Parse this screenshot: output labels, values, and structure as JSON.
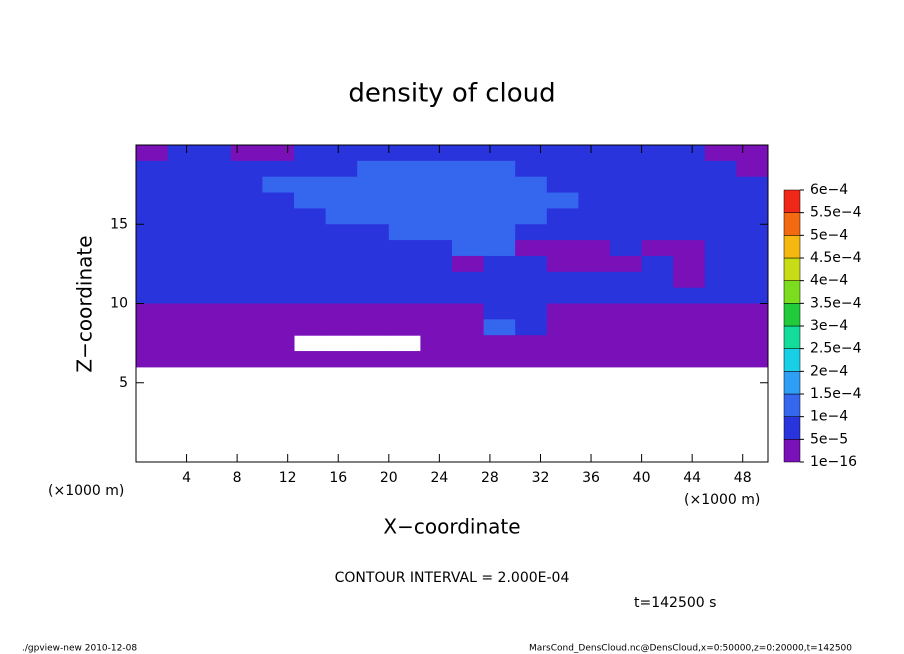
{
  "chart_data": {
    "type": "contour",
    "title": "density of cloud",
    "xlabel": "X−coordinate",
    "ylabel": "Z−coordinate",
    "xunit_left": "(×1000 m)",
    "xunit_right": "(×1000 m)",
    "contour_note": "CONTOUR INTERVAL = 2.000E-04",
    "time_note": "t=142500 s",
    "footer_left": "./gpview-new   2010-12-08",
    "footer_right": "MarsCond_DensCloud.nc@DensCloud,x=0:50000,z=0:20000,t=142500",
    "xlim": [
      0,
      50
    ],
    "ylim": [
      0,
      20
    ],
    "xticks": [
      4,
      8,
      12,
      16,
      20,
      24,
      28,
      32,
      36,
      40,
      44,
      48
    ],
    "yticks": [
      5,
      10,
      15
    ],
    "x": [
      1.25,
      3.75,
      6.25,
      8.75,
      11.25,
      13.75,
      16.25,
      18.75,
      21.25,
      23.75,
      26.25,
      28.75,
      31.25,
      33.75,
      36.25,
      38.75,
      41.25,
      43.75,
      46.25,
      48.75
    ],
    "y": [
      19.5,
      18.5,
      17.5,
      16.5,
      15.5,
      14.5,
      13.5,
      12.5,
      11.5,
      10.5,
      9.5,
      8.5,
      7.5,
      6.5
    ],
    "values": [
      [
        2e-05,
        7e-05,
        7e-05,
        2e-05,
        2e-05,
        7e-05,
        7e-05,
        7e-05,
        7e-05,
        7e-05,
        7e-05,
        7e-05,
        7e-05,
        7e-05,
        7e-05,
        7e-05,
        7e-05,
        7e-05,
        2e-05,
        2e-05
      ],
      [
        7e-05,
        7e-05,
        7e-05,
        7e-05,
        7e-05,
        7e-05,
        7e-05,
        0.00012,
        0.00012,
        0.00012,
        0.00012,
        0.00012,
        7e-05,
        7e-05,
        7e-05,
        7e-05,
        7e-05,
        7e-05,
        7e-05,
        2e-05
      ],
      [
        7e-05,
        7e-05,
        7e-05,
        7e-05,
        0.00012,
        0.00012,
        0.00012,
        0.00012,
        0.00012,
        0.00012,
        0.00012,
        0.00012,
        0.00012,
        7e-05,
        7e-05,
        7e-05,
        7e-05,
        7e-05,
        7e-05,
        7e-05
      ],
      [
        7e-05,
        7e-05,
        7e-05,
        7e-05,
        7e-05,
        0.00012,
        0.00012,
        0.00012,
        0.00012,
        0.00012,
        0.00012,
        0.00012,
        0.00012,
        0.00012,
        7e-05,
        7e-05,
        7e-05,
        7e-05,
        7e-05,
        7e-05
      ],
      [
        7e-05,
        7e-05,
        7e-05,
        7e-05,
        7e-05,
        7e-05,
        0.00012,
        0.00012,
        0.00012,
        0.00012,
        0.00012,
        0.00012,
        0.00012,
        7e-05,
        7e-05,
        7e-05,
        7e-05,
        7e-05,
        7e-05,
        7e-05
      ],
      [
        7e-05,
        7e-05,
        7e-05,
        7e-05,
        7e-05,
        7e-05,
        7e-05,
        7e-05,
        0.00012,
        0.00012,
        0.00012,
        0.00012,
        7e-05,
        7e-05,
        7e-05,
        7e-05,
        7e-05,
        7e-05,
        7e-05,
        7e-05
      ],
      [
        7e-05,
        7e-05,
        7e-05,
        7e-05,
        7e-05,
        7e-05,
        7e-05,
        7e-05,
        7e-05,
        7e-05,
        0.00012,
        0.00012,
        2e-05,
        2e-05,
        2e-05,
        7e-05,
        2e-05,
        2e-05,
        7e-05,
        7e-05
      ],
      [
        7e-05,
        7e-05,
        7e-05,
        7e-05,
        7e-05,
        7e-05,
        7e-05,
        7e-05,
        7e-05,
        7e-05,
        2e-05,
        7e-05,
        7e-05,
        2e-05,
        2e-05,
        2e-05,
        7e-05,
        2e-05,
        7e-05,
        7e-05
      ],
      [
        7e-05,
        7e-05,
        7e-05,
        7e-05,
        7e-05,
        7e-05,
        7e-05,
        7e-05,
        7e-05,
        7e-05,
        7e-05,
        7e-05,
        7e-05,
        7e-05,
        7e-05,
        7e-05,
        7e-05,
        2e-05,
        7e-05,
        7e-05
      ],
      [
        7e-05,
        7e-05,
        7e-05,
        7e-05,
        7e-05,
        7e-05,
        7e-05,
        7e-05,
        7e-05,
        7e-05,
        7e-05,
        7e-05,
        7e-05,
        7e-05,
        7e-05,
        7e-05,
        7e-05,
        7e-05,
        7e-05,
        7e-05
      ],
      [
        2e-05,
        2e-05,
        2e-05,
        2e-05,
        2e-05,
        2e-05,
        2e-05,
        2e-05,
        2e-05,
        2e-05,
        2e-05,
        7e-05,
        7e-05,
        2e-05,
        2e-05,
        2e-05,
        2e-05,
        2e-05,
        2e-05,
        2e-05
      ],
      [
        2e-05,
        2e-05,
        2e-05,
        2e-05,
        2e-05,
        2e-05,
        2e-05,
        2e-05,
        2e-05,
        2e-05,
        2e-05,
        0.00012,
        7e-05,
        2e-05,
        2e-05,
        2e-05,
        2e-05,
        2e-05,
        2e-05,
        2e-05
      ],
      [
        2e-05,
        2e-05,
        2e-05,
        2e-05,
        2e-05,
        null,
        null,
        null,
        null,
        2e-05,
        2e-05,
        2e-05,
        2e-05,
        2e-05,
        2e-05,
        2e-05,
        2e-05,
        2e-05,
        2e-05,
        2e-05
      ],
      [
        2e-05,
        2e-05,
        2e-05,
        2e-05,
        2e-05,
        2e-05,
        2e-05,
        2e-05,
        2e-05,
        2e-05,
        2e-05,
        2e-05,
        2e-05,
        2e-05,
        2e-05,
        2e-05,
        2e-05,
        2e-05,
        2e-05,
        2e-05
      ]
    ],
    "levels": [
      {
        "value": 1e-16,
        "label": "1e−16"
      },
      {
        "value": 5e-05,
        "label": "5e−5"
      },
      {
        "value": 0.0001,
        "label": "1e−4"
      },
      {
        "value": 0.00015,
        "label": "1.5e−4"
      },
      {
        "value": 0.0002,
        "label": "2e−4"
      },
      {
        "value": 0.00025,
        "label": "2.5e−4"
      },
      {
        "value": 0.0003,
        "label": "3e−4"
      },
      {
        "value": 0.00035,
        "label": "3.5e−4"
      },
      {
        "value": 0.0004,
        "label": "4e−4"
      },
      {
        "value": 0.00045,
        "label": "4.5e−4"
      },
      {
        "value": 0.0005,
        "label": "5e−4"
      },
      {
        "value": 0.00055,
        "label": "5.5e−4"
      },
      {
        "value": 0.0006,
        "label": "6e−4"
      }
    ],
    "colors": [
      "#7a10b8",
      "#2a34dc",
      "#3566ee",
      "#2f9ff5",
      "#18cfe6",
      "#14dc9a",
      "#20cc3c",
      "#7cdc1e",
      "#c8dc18",
      "#f4b810",
      "#f46a10",
      "#f02818",
      "#f49090"
    ]
  }
}
